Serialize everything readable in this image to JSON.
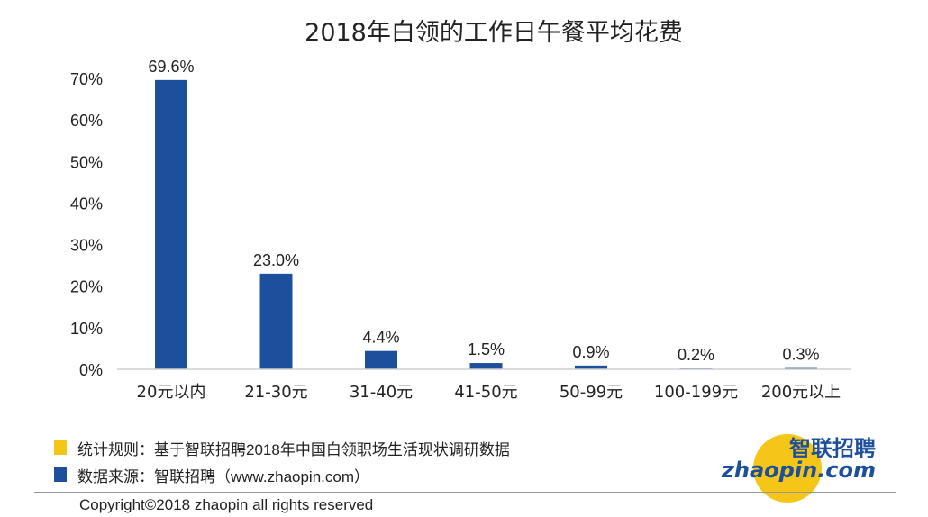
{
  "chart_data": {
    "type": "bar",
    "title": "2018年白领的工作日午餐平均花费",
    "categories": [
      "20元以内",
      "21-30元",
      "31-40元",
      "41-50元",
      "50-99元",
      "100-199元",
      "200元以上"
    ],
    "values": [
      69.6,
      23.0,
      4.4,
      1.5,
      0.9,
      0.2,
      0.3
    ],
    "value_labels": [
      "69.6%",
      "23.0%",
      "4.4%",
      "1.5%",
      "0.9%",
      "0.2%",
      "0.3%"
    ],
    "yticks": [
      0,
      10,
      20,
      30,
      40,
      50,
      60,
      70
    ],
    "ytick_labels": [
      "0%",
      "10%",
      "20%",
      "30%",
      "40%",
      "50%",
      "60%",
      "70%"
    ],
    "ylim": [
      0,
      70
    ],
    "xlabel": "",
    "ylabel": "",
    "grid": false,
    "bar_color": "#1c4f9c"
  },
  "notes": {
    "stat_rule": "统计规则：基于智联招聘2018年中国白领职场生活现状调研数据",
    "stat_rule_color": "#f5c518",
    "data_source": "数据来源：智联招聘（www.zhaopin.com）",
    "data_source_color": "#1c4f9c"
  },
  "logo": {
    "brand_cn": "智联招聘",
    "brand_en": "zhaopin.com",
    "brand_color": "#1c4f9c",
    "circle_color": "#f5c518"
  },
  "footer": {
    "copyright": "Copyright©2018 zhaopin all rights reserved"
  }
}
